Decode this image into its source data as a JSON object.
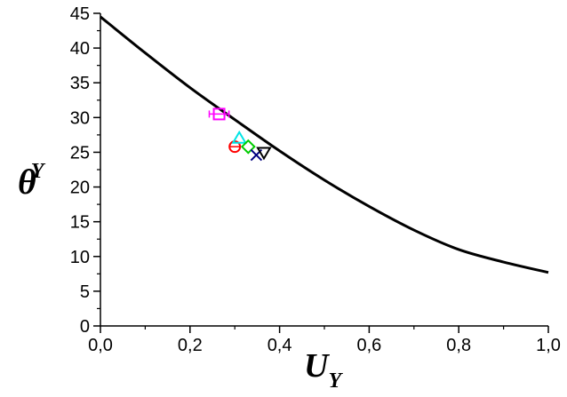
{
  "chart_data": {
    "type": "scatter",
    "xlabel": "U",
    "xlabel_sub": "Y",
    "ylabel": "θ",
    "ylabel_sub": "Y",
    "xlim": [
      0.0,
      1.0
    ],
    "ylim": [
      0,
      45
    ],
    "x_ticks": [
      0.0,
      0.2,
      0.4,
      0.6,
      0.8,
      1.0
    ],
    "x_tick_labels": [
      "0,0",
      "0,2",
      "0,4",
      "0,6",
      "0,8",
      "1,0"
    ],
    "y_ticks": [
      0,
      5,
      10,
      15,
      20,
      25,
      30,
      35,
      40,
      45
    ],
    "y_tick_labels": [
      "0",
      "5",
      "10",
      "15",
      "20",
      "25",
      "30",
      "35",
      "40",
      "45"
    ],
    "grid": false,
    "curve": {
      "color": "#000000",
      "x": [
        0.0,
        0.1,
        0.2,
        0.3,
        0.4,
        0.5,
        0.6,
        0.7,
        0.8,
        0.9,
        1.0
      ],
      "y": [
        44.5,
        39.3,
        34.3,
        29.7,
        25.2,
        21.0,
        17.2,
        13.8,
        11.0,
        9.2,
        7.7
      ]
    },
    "series": [
      {
        "marker": "square",
        "color": "#ff00ff",
        "x": 0.265,
        "y": 30.5,
        "xerr": 0.022
      },
      {
        "marker": "circle",
        "color": "#ff0000",
        "x": 0.3,
        "y": 25.8
      },
      {
        "marker": "triangle-up",
        "color": "#00e5e5",
        "x": 0.31,
        "y": 27.0
      },
      {
        "marker": "diamond",
        "color": "#00cc00",
        "x": 0.33,
        "y": 25.8
      },
      {
        "marker": "x",
        "color": "#000080",
        "x": 0.348,
        "y": 24.6
      },
      {
        "marker": "triangle-down",
        "color": "#000000",
        "x": 0.365,
        "y": 25.0
      }
    ]
  }
}
